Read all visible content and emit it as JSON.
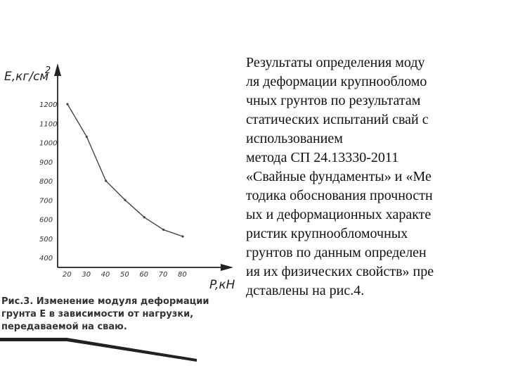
{
  "chart_data": {
    "type": "line",
    "ylabel": "E,кг/см",
    "ylabel_sup": "2",
    "xlabel": "P,кН",
    "x": [
      20,
      30,
      40,
      50,
      60,
      70,
      80
    ],
    "y": [
      1200,
      1030,
      800,
      700,
      610,
      545,
      510
    ],
    "xticks": [
      "20",
      "30",
      "40",
      "50",
      "60",
      "70",
      "80"
    ],
    "yticks": [
      "1200",
      "1100",
      "1000",
      "900",
      "800",
      "700",
      "600",
      "500",
      "400"
    ],
    "xlim": [
      15,
      85
    ],
    "ylim": [
      400,
      1200
    ],
    "line_color": "#444444"
  },
  "caption": {
    "fig_ref": "Рис.3.",
    "text": " Изменение модуля деформации грунта Е в зависимости от нагрузки, передаваемой на сваю."
  },
  "body_lines": [
    "Результаты определения моду",
    "ля деформации крупнообломо",
    "чных грунтов по результатам",
    "статических испытаний свай с",
    "использованием",
    "метода СП 24.13330-2011",
    "«Свайные фундаменты» и «Ме",
    "тодика обоснования прочностн",
    "ых и деформационных характе",
    "ристик крупнообломочных",
    "грунтов по данным определен",
    "ия их физических свойств» пре",
    "дставлены на рис.4."
  ]
}
